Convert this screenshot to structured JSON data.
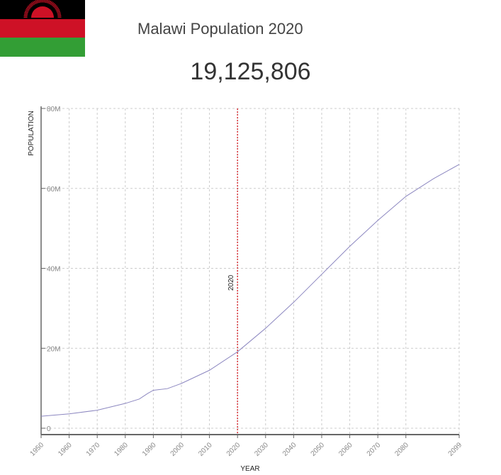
{
  "header": {
    "title": "Malawi Population 2020",
    "population": "19,125,806",
    "flag_icon": "malawi-flag"
  },
  "colors": {
    "line": "#8c87c0",
    "marker": "#d9343a",
    "grid": "#cccccc"
  },
  "chart_data": {
    "type": "line",
    "xlabel": "YEAR",
    "ylabel": "POPULATION",
    "xlim": [
      1950,
      2099
    ],
    "ylim": [
      0,
      80000000
    ],
    "x_ticks": [
      1950,
      1960,
      1970,
      1980,
      1990,
      2000,
      2010,
      2020,
      2030,
      2040,
      2050,
      2060,
      2070,
      2080,
      2099
    ],
    "y_ticks": [
      {
        "v": 0,
        "label": "0"
      },
      {
        "v": 20000000,
        "label": "20M"
      },
      {
        "v": 40000000,
        "label": "40M"
      },
      {
        "v": 60000000,
        "label": "60M"
      },
      {
        "v": 80000000,
        "label": "80M"
      }
    ],
    "grid": true,
    "marker": {
      "x": 2020,
      "label": "2020"
    },
    "x": [
      1950,
      1960,
      1970,
      1980,
      1985,
      1988,
      1990,
      1995,
      2000,
      2010,
      2020,
      2030,
      2040,
      2050,
      2060,
      2070,
      2080,
      2090,
      2099
    ],
    "values": [
      3000000,
      3600000,
      4500000,
      6200000,
      7300000,
      8700000,
      9500000,
      9900000,
      11200000,
      14500000,
      19125806,
      25000000,
      31500000,
      38500000,
      45500000,
      52000000,
      58000000,
      62500000,
      66000000
    ]
  }
}
